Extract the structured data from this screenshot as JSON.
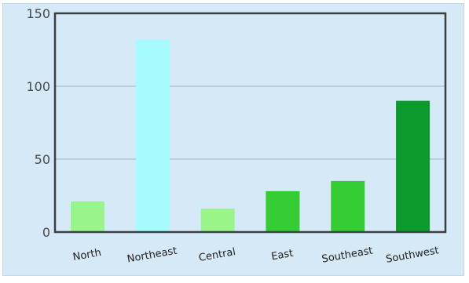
{
  "chart_data": {
    "type": "bar",
    "categories": [
      "North",
      "Northeast",
      "Central",
      "East",
      "Southeast",
      "Southwest"
    ],
    "values": [
      21,
      132,
      16,
      28,
      35,
      90
    ],
    "colors": [
      "#99f58a",
      "#a6fbff",
      "#99f58a",
      "#33cc33",
      "#33cc33",
      "#0d9a2c"
    ],
    "y_ticks": [
      "0",
      "50",
      "100",
      "150"
    ],
    "y_tick_values": [
      0,
      50,
      100,
      150
    ],
    "ylim": [
      0,
      150
    ],
    "grid": true,
    "legend": "none"
  }
}
